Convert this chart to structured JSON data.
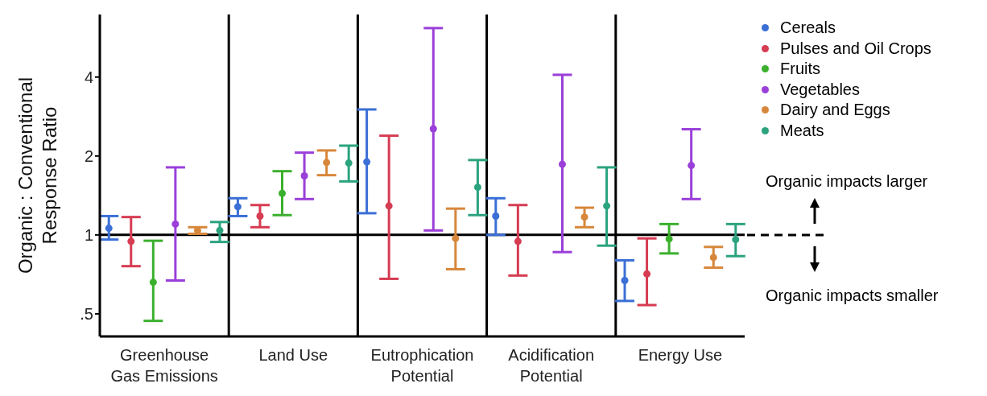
{
  "chart_data": {
    "type": "scatter",
    "ylabel": "Organic : Conventional Response Ratio",
    "categories": [
      "Greenhouse Gas Emissions",
      "Land Use",
      "Eutrophication Potential",
      "Acidification Potential",
      "Energy Use"
    ],
    "series": [
      {
        "name": "Cereals",
        "color": "#3b6fd6",
        "values": [
          1.06,
          1.28,
          1.9,
          1.18,
          0.67
        ],
        "errors": [
          [
            0.96,
            1.18
          ],
          [
            1.18,
            1.38
          ],
          [
            1.21,
            3.01
          ],
          [
            1.0,
            1.38
          ],
          [
            0.56,
            0.8
          ]
        ]
      },
      {
        "name": "Pulses and Oil Crops",
        "color": "#d63c52",
        "values": [
          0.945,
          1.18,
          1.29,
          0.945,
          0.71
        ],
        "errors": [
          [
            0.76,
            1.17
          ],
          [
            1.07,
            1.3
          ],
          [
            0.68,
            2.39
          ],
          [
            0.7,
            1.3
          ],
          [
            0.54,
            0.97
          ]
        ]
      },
      {
        "name": "Fruits",
        "color": "#3bb02d",
        "values": [
          0.66,
          1.44,
          null,
          null,
          0.965
        ],
        "errors": [
          [
            0.47,
            0.95
          ],
          [
            1.19,
            1.75
          ],
          null,
          null,
          [
            0.85,
            1.1
          ]
        ]
      },
      {
        "name": "Vegetables",
        "color": "#9a3fd9",
        "values": [
          1.1,
          1.68,
          2.54,
          1.86,
          1.84
        ],
        "errors": [
          [
            0.67,
            1.81
          ],
          [
            1.37,
            2.06
          ],
          [
            1.04,
            6.15
          ],
          [
            0.86,
            4.08
          ],
          [
            1.37,
            2.53
          ]
        ]
      },
      {
        "name": "Dairy and Eggs",
        "color": "#d7873b",
        "values": [
          1.04,
          1.89,
          0.97,
          1.17,
          0.82
        ],
        "errors": [
          [
            1.01,
            1.07
          ],
          [
            1.69,
            2.1
          ],
          [
            0.74,
            1.26
          ],
          [
            1.07,
            1.27
          ],
          [
            0.75,
            0.9
          ]
        ]
      },
      {
        "name": "Meats",
        "color": "#2ba37e",
        "values": [
          1.04,
          1.88,
          1.52,
          1.29,
          0.96
        ],
        "errors": [
          [
            0.94,
            1.12
          ],
          [
            1.6,
            2.19
          ],
          [
            1.19,
            1.93
          ],
          [
            0.91,
            1.81
          ],
          [
            0.83,
            1.1
          ]
        ]
      }
    ],
    "log": "y",
    "ylim": [
      0.41,
      6.93
    ],
    "yticks": [
      {
        "value": 0.5,
        "label": ".5"
      },
      1,
      2,
      4
    ],
    "grid": "x",
    "legend": "top right",
    "marker": "circle",
    "ref_lines": [
      {
        "axis": "y",
        "value": 1
      }
    ],
    "annotations": [
      "Organic impacts larger",
      "Organic impacts smaller"
    ]
  }
}
